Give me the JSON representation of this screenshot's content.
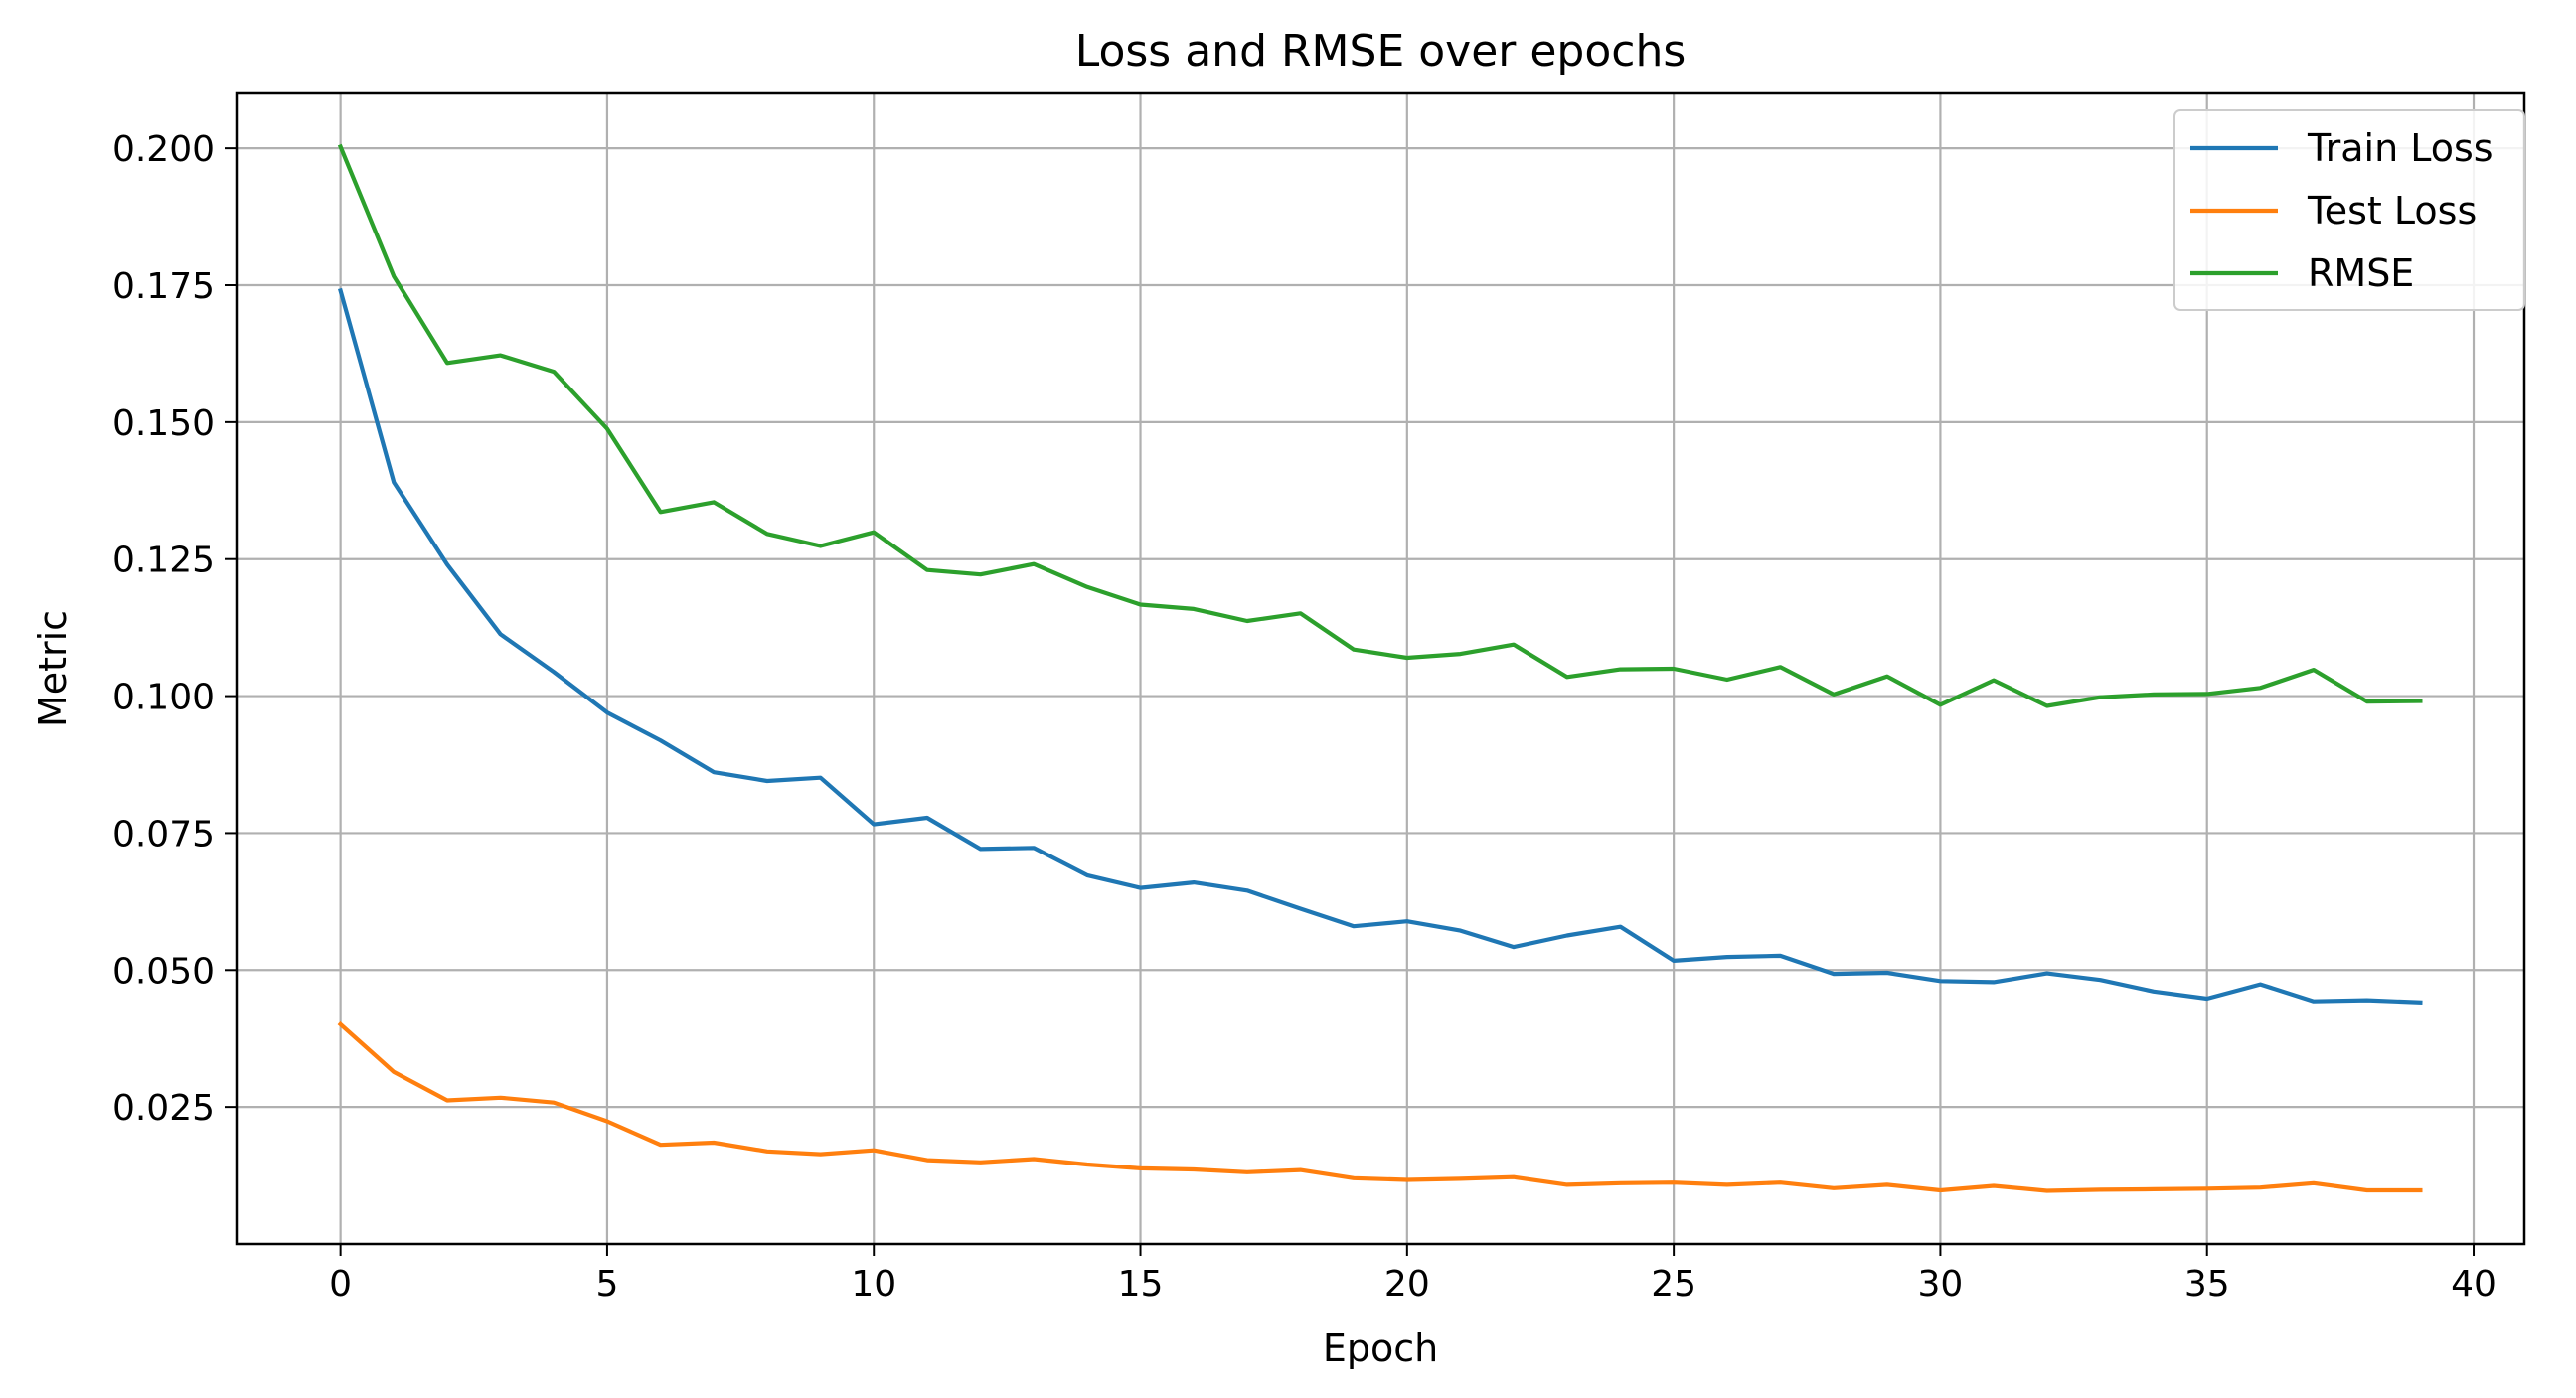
{
  "chart_data": {
    "type": "line",
    "title": "Loss and RMSE over epochs",
    "xlabel": "Epoch",
    "ylabel": "Metric",
    "xlim": [
      -1.95,
      40.95
    ],
    "ylim": [
      0.0,
      0.21
    ],
    "xticks": [
      0,
      5,
      10,
      15,
      20,
      25,
      30,
      35,
      40
    ],
    "yticks": [
      0.025,
      0.05,
      0.075,
      0.1,
      0.125,
      0.15,
      0.175,
      0.2
    ],
    "ytick_labels": [
      "0.025",
      "0.050",
      "0.075",
      "0.100",
      "0.125",
      "0.150",
      "0.175",
      "0.200"
    ],
    "grid": true,
    "legend_position": "top-right",
    "x": [
      0,
      1,
      2,
      3,
      4,
      5,
      6,
      7,
      8,
      9,
      10,
      11,
      12,
      13,
      14,
      15,
      16,
      17,
      18,
      19,
      20,
      21,
      22,
      23,
      24,
      25,
      26,
      27,
      28,
      29,
      30,
      31,
      32,
      33,
      34,
      35,
      36,
      37,
      38,
      39
    ],
    "series": [
      {
        "name": "Train Loss",
        "color": "#1f77b4",
        "values": [
          0.174,
          0.139,
          0.124,
          0.1113,
          0.1044,
          0.097,
          0.0919,
          0.0861,
          0.0845,
          0.0851,
          0.0766,
          0.0778,
          0.0721,
          0.0723,
          0.0673,
          0.065,
          0.066,
          0.0645,
          0.0612,
          0.058,
          0.0589,
          0.0572,
          0.0542,
          0.0563,
          0.0579,
          0.0517,
          0.0524,
          0.0526,
          0.0493,
          0.0495,
          0.048,
          0.0478,
          0.0494,
          0.0482,
          0.0461,
          0.0448,
          0.0474,
          0.0443,
          0.0445,
          0.0441
        ]
      },
      {
        "name": "Test Loss",
        "color": "#ff7f0e",
        "values": [
          0.0401,
          0.0314,
          0.0262,
          0.0267,
          0.0258,
          0.0224,
          0.0181,
          0.0185,
          0.0169,
          0.0164,
          0.0171,
          0.0153,
          0.0149,
          0.0155,
          0.0145,
          0.0138,
          0.0136,
          0.0131,
          0.0135,
          0.012,
          0.0117,
          0.0119,
          0.0122,
          0.0108,
          0.0111,
          0.0112,
          0.0108,
          0.0112,
          0.0102,
          0.0108,
          0.0098,
          0.0106,
          0.0097,
          0.0099,
          0.01,
          0.0101,
          0.0103,
          0.0111,
          0.0098,
          0.0098
        ]
      },
      {
        "name": "RMSE",
        "color": "#2ca02c",
        "values": [
          0.2003,
          0.1766,
          0.1608,
          0.1622,
          0.1592,
          0.1488,
          0.1336,
          0.1354,
          0.1296,
          0.1274,
          0.1299,
          0.123,
          0.1222,
          0.1241,
          0.1199,
          0.1167,
          0.1159,
          0.1137,
          0.1151,
          0.1085,
          0.107,
          0.1077,
          0.1094,
          0.1035,
          0.1049,
          0.105,
          0.103,
          0.1053,
          0.1003,
          0.1036,
          0.0984,
          0.1029,
          0.0982,
          0.0998,
          0.1003,
          0.1004,
          0.1015,
          0.1048,
          0.099,
          0.0991
        ]
      }
    ]
  }
}
